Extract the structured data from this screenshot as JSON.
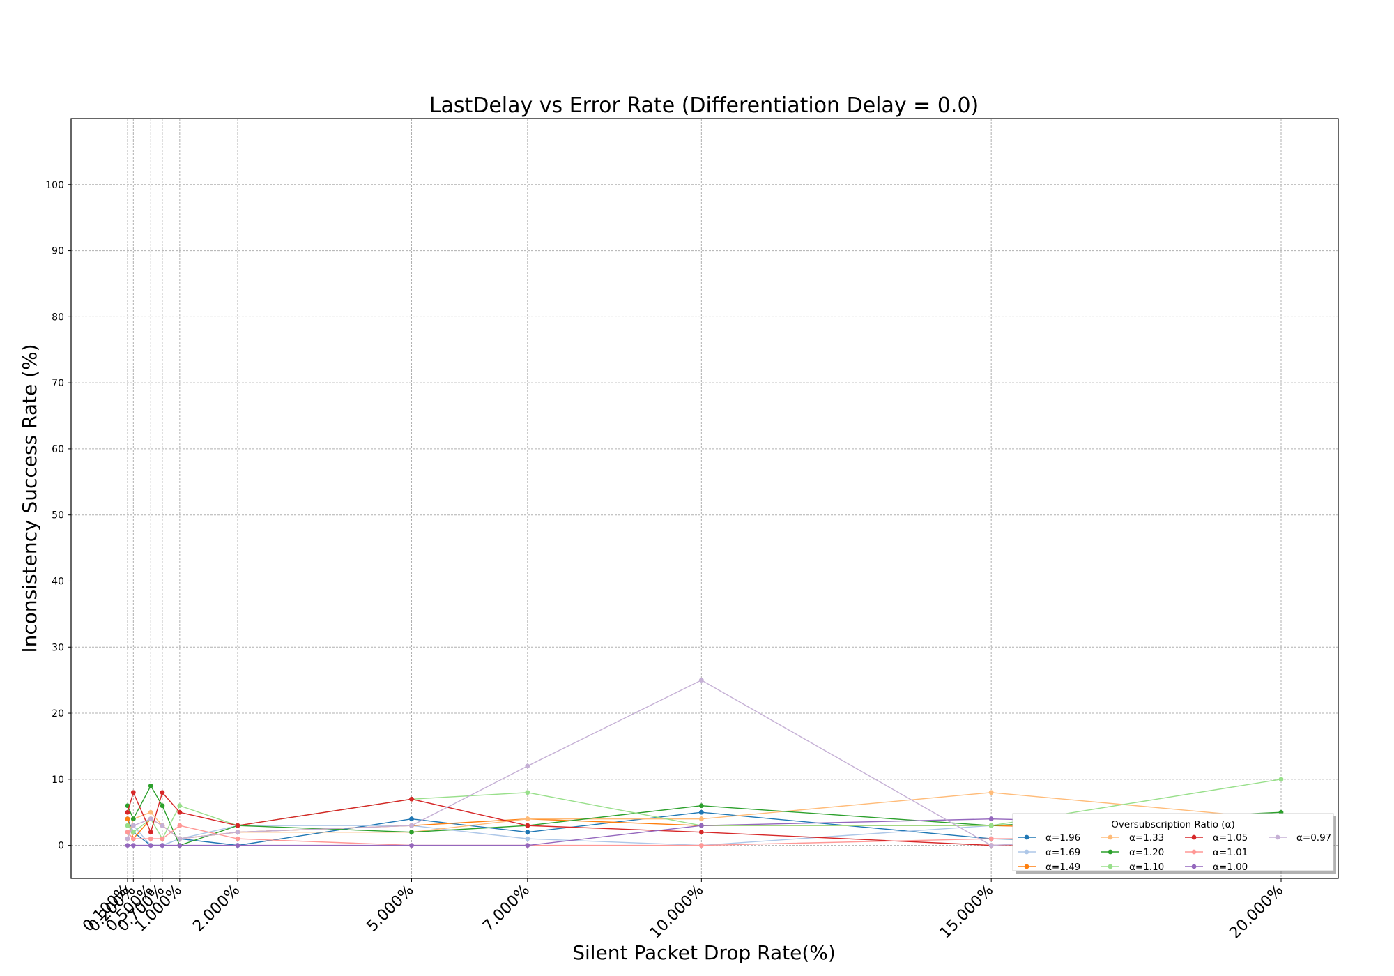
{
  "chart_data": {
    "type": "line",
    "title": "LastDelay vs Error Rate (Differentiation Delay = 0.0)",
    "xlabel": "Silent Packet Drop Rate(%)",
    "ylabel": "Inconsistency Success Rate (%)",
    "x": [
      0.1,
      0.2,
      0.5,
      0.7,
      1.0,
      2.0,
      5.0,
      7.0,
      10.0,
      15.0,
      20.0
    ],
    "x_tick_labels": [
      "0.100%",
      "0.200%",
      "0.500%",
      "0.700%",
      "1.000%",
      "2.000%",
      "5.000%",
      "7.000%",
      "10.000%",
      "15.000%",
      "20.000%"
    ],
    "ylim": [
      -5,
      110
    ],
    "y_ticks": [
      0,
      10,
      20,
      30,
      40,
      50,
      60,
      70,
      80,
      90,
      100
    ],
    "grid": true,
    "legend_title": "Oversubscription Ratio (α)",
    "legend_position": "lower-right",
    "series": [
      {
        "name": "α=1.96",
        "color": "#1f77b4",
        "values": [
          4,
          2,
          0,
          0,
          1,
          0,
          4,
          2,
          5,
          1,
          0
        ]
      },
      {
        "name": "α=1.69",
        "color": "#aec7e8",
        "values": [
          2,
          3,
          0,
          0,
          1,
          3,
          3,
          1,
          0,
          3,
          2
        ]
      },
      {
        "name": "α=1.49",
        "color": "#ff7f0e",
        "values": [
          4,
          1,
          4,
          3,
          1,
          2,
          3,
          4,
          3,
          3,
          2
        ]
      },
      {
        "name": "α=1.33",
        "color": "#ffbb78",
        "values": [
          1,
          4,
          5,
          3,
          1,
          2,
          2,
          4,
          4,
          8,
          4
        ]
      },
      {
        "name": "α=1.20",
        "color": "#2ca02c",
        "values": [
          6,
          4,
          9,
          6,
          0,
          3,
          2,
          3,
          6,
          3,
          5
        ]
      },
      {
        "name": "α=1.10",
        "color": "#98df8a",
        "values": [
          3,
          2,
          4,
          1,
          6,
          3,
          7,
          8,
          3,
          3,
          10
        ]
      },
      {
        "name": "α=1.05",
        "color": "#d62728",
        "values": [
          5,
          8,
          2,
          8,
          5,
          3,
          7,
          3,
          2,
          0,
          1
        ]
      },
      {
        "name": "α=1.01",
        "color": "#ff9896",
        "values": [
          2,
          1,
          1,
          1,
          3,
          1,
          0,
          0,
          0,
          1,
          1
        ]
      },
      {
        "name": "α=1.00",
        "color": "#9467bd",
        "values": [
          0,
          0,
          0,
          0,
          0,
          0,
          0,
          0,
          3,
          4,
          3
        ]
      },
      {
        "name": "α=0.97",
        "color": "#c5b0d5",
        "values": [
          1,
          3,
          4,
          3,
          1,
          2,
          3,
          12,
          25,
          0,
          2
        ]
      }
    ]
  }
}
